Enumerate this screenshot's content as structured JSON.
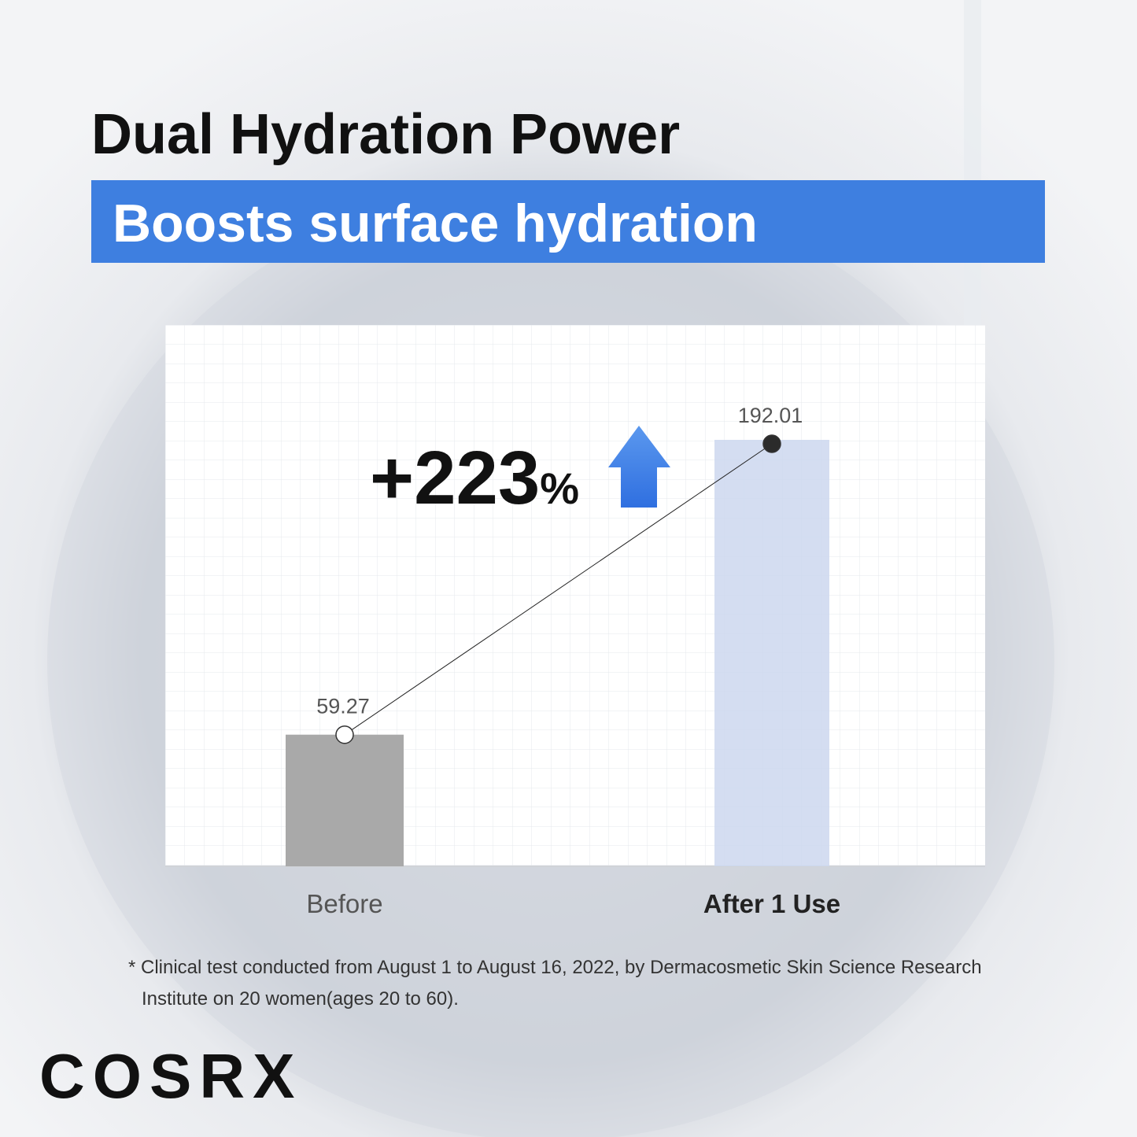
{
  "chart_data": {
    "type": "bar",
    "title": "Dual Hydration Power",
    "subtitle": "Boosts surface hydration",
    "categories": [
      "Before",
      "After 1 Use"
    ],
    "values": [
      59.27,
      192.01
    ],
    "colors": [
      "#a9a9a9",
      "#ccd7ee"
    ],
    "marker_colors": [
      "#ffffff",
      "#2b2b2b"
    ],
    "annotation_number": "+223",
    "annotation_unit": "%",
    "footnote": "* Clinical test conducted from August 1 to August 16, 2022, by Dermacosmetic Skin Science Research Institute on 20 women(ages 20 to 60).",
    "brand": "COSRX"
  }
}
